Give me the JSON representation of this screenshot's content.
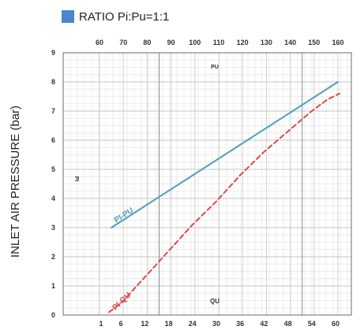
{
  "chart_data": {
    "type": "line",
    "title": "",
    "legend": [
      {
        "label": "RATIO Pi:Pu=1:1",
        "color": "#4a86cf"
      }
    ],
    "ylabel": "INLET AIR PRESSURE (bar)",
    "ylim": [
      0,
      9
    ],
    "yticks": [
      "0",
      "1",
      "2",
      "3",
      "4",
      "5",
      "6",
      "7",
      "8",
      "9"
    ],
    "top_axis": {
      "label": "PU",
      "ticks": [
        "60",
        "70",
        "80",
        "90",
        "100",
        "110",
        "120",
        "130",
        "140",
        "150",
        "160"
      ]
    },
    "bottom_axis": {
      "label": "QU",
      "ticks": [
        "1",
        "6",
        "12",
        "18",
        "24",
        "30",
        "36",
        "42",
        "48",
        "54",
        "60"
      ]
    },
    "inner_label": "PI",
    "grid": true,
    "series": [
      {
        "name": "PI-PU",
        "color": "#4aa0b8",
        "style": "solid",
        "axis": "top",
        "x": [
          65,
          160
        ],
        "y": [
          3.0,
          8.0
        ]
      },
      {
        "name": "PI-QU",
        "color": "#e04848",
        "style": "dashed",
        "axis": "bottom",
        "x": [
          3,
          6,
          12,
          18,
          24,
          30,
          36,
          42,
          48,
          54,
          58,
          61
        ],
        "y": [
          0.1,
          0.4,
          1.3,
          2.2,
          3.1,
          3.9,
          4.8,
          5.6,
          6.3,
          7.0,
          7.4,
          7.6
        ]
      }
    ]
  }
}
